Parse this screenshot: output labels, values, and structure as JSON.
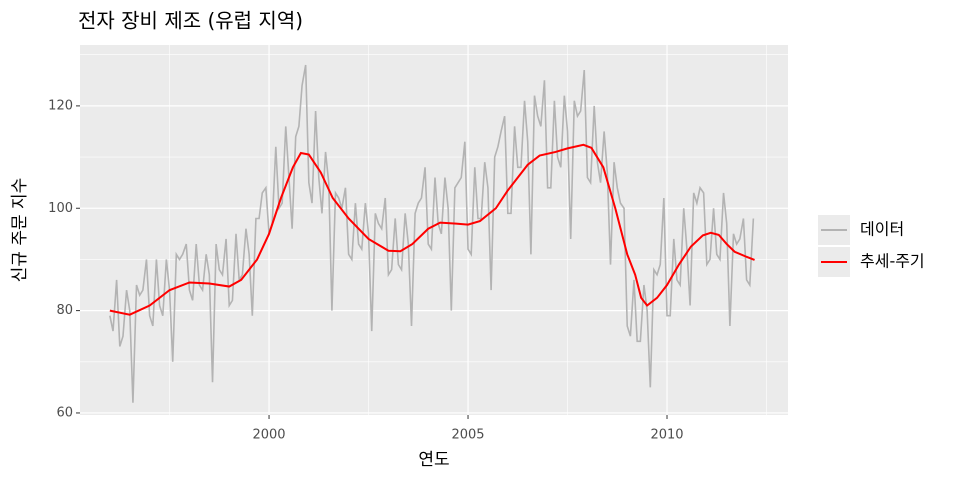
{
  "chart_data": {
    "type": "line",
    "title": "전자 장비 제조 (유럽 지역)",
    "x_label": "연도",
    "y_label": "신규 주문 지수",
    "xlim": [
      1995.25,
      2013.04
    ],
    "ylim": [
      59.6,
      131.9
    ],
    "xticks": [
      2000,
      2005,
      2010
    ],
    "yticks": [
      60,
      80,
      100,
      120
    ],
    "grid": true,
    "legend": "right",
    "series": [
      {
        "name": "데이터",
        "color": "#b3b3b3",
        "x": [
          1996,
          1996.08,
          1996.17,
          1996.25,
          1996.33,
          1996.42,
          1996.5,
          1996.58,
          1996.67,
          1996.75,
          1996.83,
          1996.92,
          1997,
          1997.08,
          1997.17,
          1997.25,
          1997.33,
          1997.42,
          1997.5,
          1997.58,
          1997.67,
          1997.75,
          1997.83,
          1997.92,
          1998,
          1998.08,
          1998.17,
          1998.25,
          1998.33,
          1998.42,
          1998.5,
          1998.58,
          1998.67,
          1998.75,
          1998.83,
          1998.92,
          1999,
          1999.08,
          1999.17,
          1999.25,
          1999.33,
          1999.42,
          1999.5,
          1999.58,
          1999.67,
          1999.75,
          1999.83,
          1999.92,
          2000,
          2000.08,
          2000.17,
          2000.25,
          2000.33,
          2000.42,
          2000.5,
          2000.58,
          2000.67,
          2000.75,
          2000.83,
          2000.92,
          2001,
          2001.08,
          2001.17,
          2001.25,
          2001.33,
          2001.42,
          2001.5,
          2001.58,
          2001.67,
          2001.75,
          2001.83,
          2001.92,
          2002,
          2002.08,
          2002.17,
          2002.25,
          2002.33,
          2002.42,
          2002.5,
          2002.58,
          2002.67,
          2002.75,
          2002.83,
          2002.92,
          2003,
          2003.08,
          2003.17,
          2003.25,
          2003.33,
          2003.42,
          2003.5,
          2003.58,
          2003.67,
          2003.75,
          2003.83,
          2003.92,
          2004,
          2004.08,
          2004.17,
          2004.25,
          2004.33,
          2004.42,
          2004.5,
          2004.58,
          2004.67,
          2004.75,
          2004.83,
          2004.92,
          2005,
          2005.08,
          2005.17,
          2005.25,
          2005.33,
          2005.42,
          2005.5,
          2005.58,
          2005.67,
          2005.75,
          2005.83,
          2005.92,
          2006,
          2006.08,
          2006.17,
          2006.25,
          2006.33,
          2006.42,
          2006.5,
          2006.58,
          2006.67,
          2006.75,
          2006.83,
          2006.92,
          2007,
          2007.08,
          2007.17,
          2007.25,
          2007.33,
          2007.42,
          2007.5,
          2007.58,
          2007.67,
          2007.75,
          2007.83,
          2007.92,
          2008,
          2008.08,
          2008.17,
          2008.25,
          2008.33,
          2008.42,
          2008.5,
          2008.58,
          2008.67,
          2008.75,
          2008.83,
          2008.92,
          2009,
          2009.08,
          2009.17,
          2009.25,
          2009.33,
          2009.42,
          2009.5,
          2009.58,
          2009.67,
          2009.75,
          2009.83,
          2009.92,
          2010,
          2010.08,
          2010.17,
          2010.25,
          2010.33,
          2010.42,
          2010.5,
          2010.58,
          2010.67,
          2010.75,
          2010.83,
          2010.92,
          2011,
          2011.08,
          2011.17,
          2011.25,
          2011.33,
          2011.42,
          2011.5,
          2011.58,
          2011.67,
          2011.75,
          2011.83,
          2011.92,
          2012,
          2012.08,
          2012.17
        ],
        "values": [
          79,
          76,
          86,
          73,
          75,
          84,
          80,
          62,
          85,
          83,
          84,
          90,
          79,
          77,
          90,
          81,
          79,
          90,
          84,
          70,
          91,
          90,
          91,
          93,
          84,
          82,
          93,
          85,
          84,
          91,
          87,
          66,
          93,
          88,
          87,
          94,
          81,
          82,
          95,
          86,
          87,
          96,
          91,
          79,
          98,
          98,
          103,
          104,
          95,
          97,
          112,
          100,
          101,
          116,
          106,
          96,
          114,
          116,
          124,
          128,
          105,
          101,
          119,
          106,
          99,
          111,
          105,
          80,
          103,
          102,
          100,
          104,
          91,
          90,
          101,
          93,
          92,
          101,
          95,
          76,
          99,
          97,
          96,
          102,
          87,
          88,
          98,
          89,
          88,
          99,
          93,
          77,
          99,
          101,
          102,
          108,
          93,
          92,
          106,
          97,
          95,
          106,
          100,
          80,
          104,
          105,
          106,
          113,
          92,
          91,
          108,
          98,
          98,
          109,
          104,
          84,
          110,
          112,
          115,
          118,
          99,
          99,
          116,
          108,
          108,
          121,
          113,
          91,
          122,
          118,
          116,
          125,
          104,
          104,
          121,
          110,
          108,
          122,
          115,
          94,
          121,
          118,
          119,
          127,
          106,
          105,
          120,
          109,
          105,
          115,
          107,
          89,
          109,
          104,
          101,
          100,
          77,
          75,
          86,
          74,
          74,
          85,
          80,
          65,
          88,
          87,
          89,
          102,
          79,
          79,
          94,
          86,
          85,
          100,
          92,
          81,
          103,
          101,
          104,
          103,
          89,
          90,
          100,
          91,
          90,
          103,
          97,
          77,
          95,
          93,
          94,
          98,
          86,
          85,
          98
        ]
      },
      {
        "name": "추세-주기",
        "color": "#ff0000",
        "x": [
          1996,
          1996.5,
          1997,
          1997.5,
          1998,
          1998.5,
          1999,
          1999.3,
          1999.7,
          2000,
          2000.3,
          2000.6,
          2000.8,
          2001,
          2001.3,
          2001.6,
          2002,
          2002.5,
          2003,
          2003.3,
          2003.6,
          2004,
          2004.3,
          2004.7,
          2005,
          2005.3,
          2005.7,
          2006,
          2006.5,
          2006.8,
          2007.2,
          2007.5,
          2007.9,
          2008.1,
          2008.4,
          2008.7,
          2009,
          2009.2,
          2009.35,
          2009.5,
          2009.75,
          2010,
          2010.3,
          2010.6,
          2010.9,
          2011.1,
          2011.3,
          2011.5,
          2011.7,
          2012,
          2012.2
        ],
        "values": [
          80,
          79.2,
          81,
          84,
          85.5,
          85.3,
          84.7,
          86,
          90,
          95,
          102,
          108,
          110.8,
          110.5,
          107,
          102,
          98,
          94,
          91.7,
          91.6,
          93,
          96,
          97.2,
          97,
          96.8,
          97.5,
          100,
          103.5,
          108.5,
          110.3,
          111,
          111.7,
          112.4,
          111.8,
          108,
          100,
          91,
          87,
          82.5,
          81,
          82.5,
          85,
          89,
          92.5,
          94.7,
          95.2,
          94.8,
          93,
          91.5,
          90.5,
          89.9
        ]
      }
    ]
  }
}
